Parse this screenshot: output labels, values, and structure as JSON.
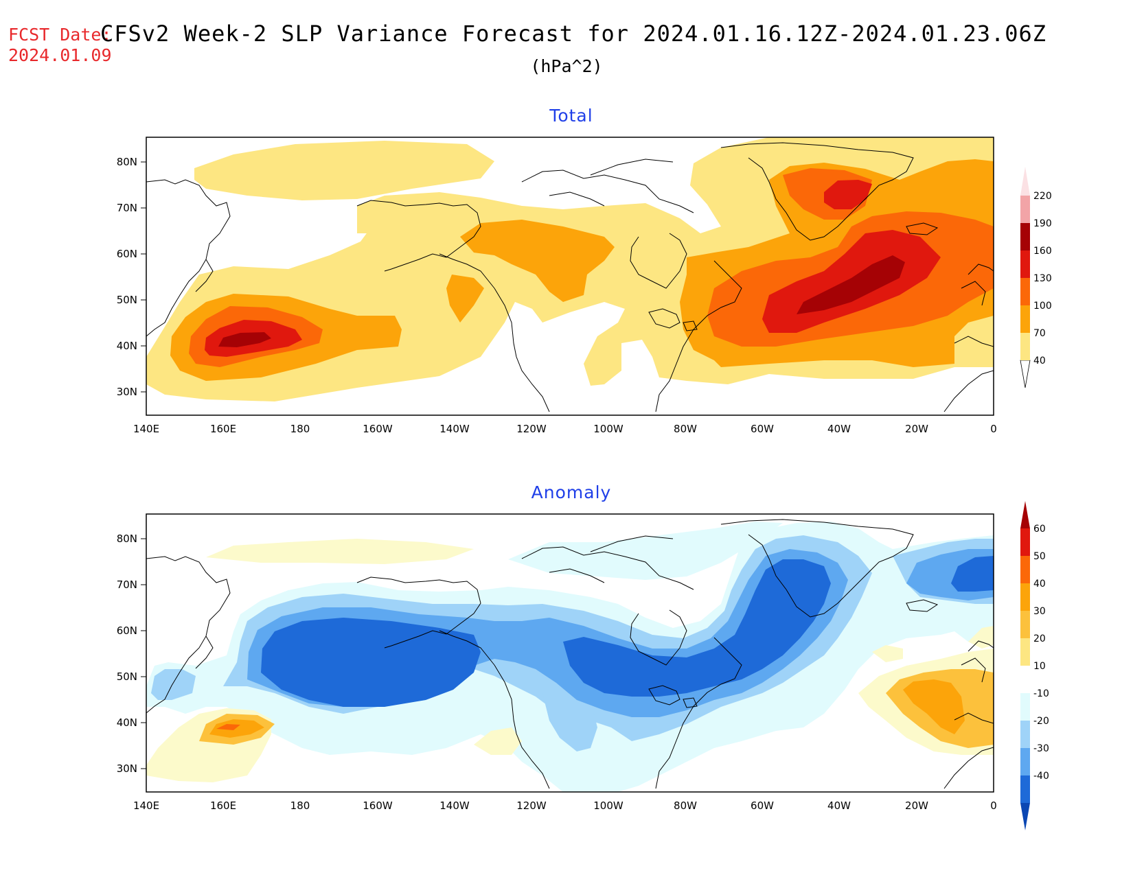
{
  "header": {
    "fcst_label": "FCST Date:",
    "fcst_date": "2024.01.09",
    "title": "CFSv2 Week-2 SLP Variance Forecast for 2024.01.16.12Z-2024.01.23.06Z",
    "units": "(hPa^2)"
  },
  "panels": [
    {
      "title": "Total",
      "lat_ticks": [
        "80N",
        "70N",
        "60N",
        "50N",
        "40N",
        "30N"
      ],
      "lon_ticks": [
        "140E",
        "160E",
        "180",
        "160W",
        "140W",
        "120W",
        "100W",
        "80W",
        "60W",
        "40W",
        "20W",
        "0"
      ],
      "colorbar": {
        "labels": [
          "40",
          "70",
          "100",
          "130",
          "160",
          "190",
          "220"
        ],
        "colors": [
          "#fde682",
          "#fca40a",
          "#fb6808",
          "#e0180e",
          "#a50205",
          "#f2a4a7",
          "#fbe1e4"
        ]
      }
    },
    {
      "title": "Anomaly",
      "lat_ticks": [
        "80N",
        "70N",
        "60N",
        "50N",
        "40N",
        "30N"
      ],
      "lon_ticks": [
        "140E",
        "160E",
        "180",
        "160W",
        "140W",
        "120W",
        "100W",
        "80W",
        "60W",
        "40W",
        "20W",
        "0"
      ],
      "colorbar": {
        "labels": [
          "60",
          "50",
          "40",
          "30",
          "20",
          "10",
          "-10",
          "-20",
          "-30",
          "-40"
        ],
        "colors": [
          "#a50205",
          "#e0180e",
          "#fb6808",
          "#fca40a",
          "#fcc13c",
          "#fde682",
          "#fcfacb",
          "#ffffff",
          "#e1fbfd",
          "#9fd3f8",
          "#5ea8f0",
          "#1e6ad8",
          "#0b47b3"
        ]
      }
    }
  ],
  "colors": {
    "total_levels": [
      "#fde682",
      "#fca40a",
      "#fb6808",
      "#e0180e",
      "#a50205"
    ],
    "anomaly_pos": [
      "#fcfacb",
      "#fde682",
      "#fcc13c",
      "#fca40a",
      "#fb6808",
      "#e0180e"
    ],
    "anomaly_neg": [
      "#e1fbfd",
      "#9fd3f8",
      "#5ea8f0",
      "#1e6ad8"
    ],
    "title_blue": "#1f3fe8",
    "fcst_red": "#e8282b"
  }
}
